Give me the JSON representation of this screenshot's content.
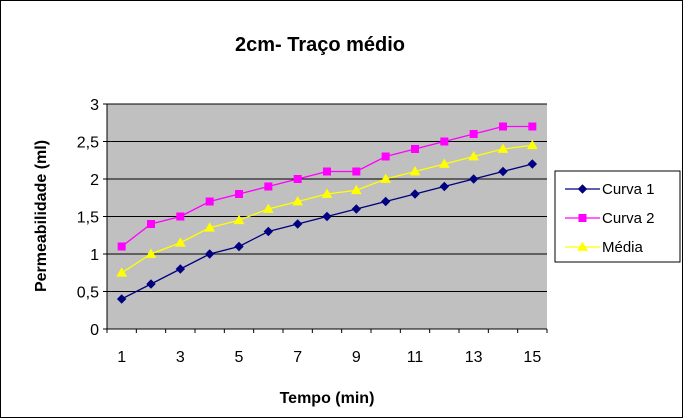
{
  "chart_data": {
    "type": "line",
    "title": "2cm- Traço médio",
    "xlabel": "Tempo (min)",
    "ylabel": "Permeabilidade (ml)",
    "x": [
      1,
      2,
      3,
      4,
      5,
      6,
      7,
      8,
      9,
      10,
      11,
      12,
      13,
      14,
      15
    ],
    "x_tick_labels": [
      "1",
      "3",
      "5",
      "7",
      "9",
      "11",
      "13",
      "15"
    ],
    "y_tick_labels": [
      "0",
      "0,5",
      "1",
      "1,5",
      "2",
      "2,5",
      "3"
    ],
    "ylim": [
      0,
      3
    ],
    "grid": "horizontal",
    "plot_background": "#c0c0c0",
    "legend_position": "right",
    "series": [
      {
        "name": "Curva 1",
        "color": "#000080",
        "marker": "diamond",
        "values": [
          0.4,
          0.6,
          0.8,
          1.0,
          1.1,
          1.3,
          1.4,
          1.5,
          1.6,
          1.7,
          1.8,
          1.9,
          2.0,
          2.1,
          2.2
        ]
      },
      {
        "name": "Curva 2",
        "color": "#ff00ff",
        "marker": "square",
        "values": [
          1.1,
          1.4,
          1.5,
          1.7,
          1.8,
          1.9,
          2.0,
          2.1,
          2.1,
          2.3,
          2.4,
          2.5,
          2.6,
          2.7,
          2.7
        ]
      },
      {
        "name": "Média",
        "color": "#ffff00",
        "marker": "triangle",
        "values": [
          0.75,
          1.0,
          1.15,
          1.35,
          1.45,
          1.6,
          1.7,
          1.8,
          1.85,
          2.0,
          2.1,
          2.2,
          2.3,
          2.4,
          2.45
        ]
      }
    ]
  }
}
